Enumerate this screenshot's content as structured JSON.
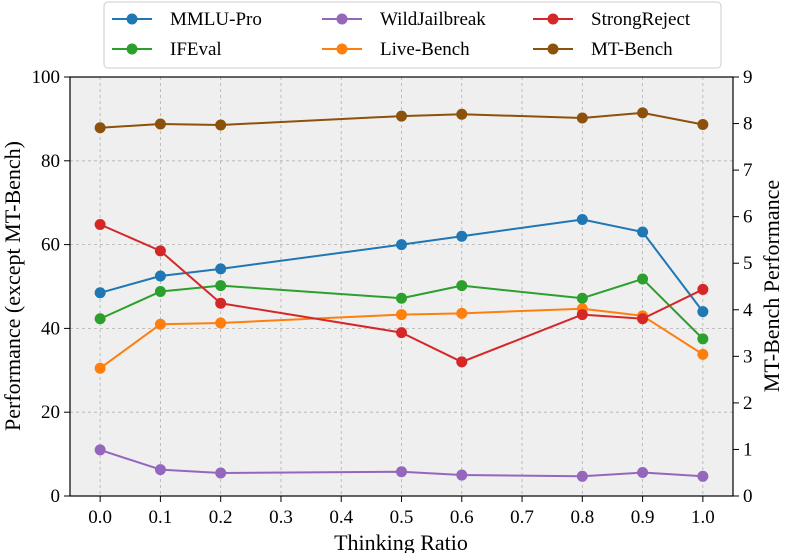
{
  "chart_data": {
    "type": "line",
    "x": [
      0.0,
      0.1,
      0.2,
      0.5,
      0.6,
      0.8,
      0.9,
      1.0
    ],
    "xticks": [
      "0.0",
      "0.1",
      "0.2",
      "0.3",
      "0.4",
      "0.5",
      "0.6",
      "0.7",
      "0.8",
      "0.9",
      "1.0"
    ],
    "xlim": [
      -0.05,
      1.05
    ],
    "xlabel": "Thinking Ratio",
    "ylabel_left": "Performance (except MT-Bench)",
    "ylabel_right": "MT-Bench Performance",
    "ylim_left": [
      0,
      100
    ],
    "ylim_right": [
      0,
      9
    ],
    "yticks_left": [
      "0",
      "20",
      "40",
      "60",
      "80",
      "100"
    ],
    "yticks_right": [
      "0",
      "1",
      "2",
      "3",
      "4",
      "5",
      "6",
      "7",
      "8",
      "9"
    ],
    "grid": true,
    "legend_placement": "top-center",
    "series": [
      {
        "name": "MMLU-Pro",
        "axis": "left",
        "color": "#1f77b4",
        "values": [
          48.5,
          52.5,
          54.2,
          60.0,
          62.0,
          66.0,
          63.0,
          44.0
        ]
      },
      {
        "name": "IFEval",
        "axis": "left",
        "color": "#2ca02c",
        "values": [
          42.3,
          48.8,
          50.2,
          47.2,
          50.2,
          47.2,
          51.8,
          37.5
        ]
      },
      {
        "name": "WildJailbreak",
        "axis": "left",
        "color": "#9467bd",
        "values": [
          11.0,
          6.3,
          5.5,
          5.8,
          5.0,
          4.7,
          5.6,
          4.7
        ]
      },
      {
        "name": "Live-Bench",
        "axis": "left",
        "color": "#ff7f0e",
        "values": [
          30.5,
          41.0,
          41.3,
          43.3,
          43.6,
          44.7,
          43.0,
          33.8
        ]
      },
      {
        "name": "StrongReject",
        "axis": "left",
        "color": "#d62728",
        "values": [
          64.8,
          58.5,
          46.0,
          39.0,
          32.0,
          43.3,
          42.3,
          49.3
        ]
      },
      {
        "name": "MT-Bench",
        "axis": "right",
        "color": "#8c510a",
        "values": [
          7.91,
          7.99,
          7.97,
          8.16,
          8.2,
          8.12,
          8.23,
          7.98
        ]
      }
    ]
  }
}
